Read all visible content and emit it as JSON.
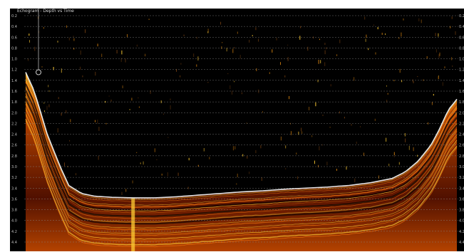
{
  "window": {
    "title": "Echogram - Depth vs Time"
  },
  "colors": {
    "background": "#000000",
    "grid": "#8a8a8a",
    "bottom_line": "#e6e6e6",
    "scale_low": "#5a1200",
    "scale_mid": "#c84a00",
    "scale_high": "#ffcc33",
    "cursor": "#cccccc"
  },
  "icons": {
    "cursor_marker": "circle-cursor-icon"
  },
  "chart_data": {
    "type": "heatmap",
    "title": "Echogram - Depth vs Time",
    "xlabel": "",
    "ylabel": "",
    "y_axis_inverted": true,
    "ylim": [
      0.2,
      4.4
    ],
    "yticks": [
      "0.2",
      "0.4",
      "0.6",
      "0.8",
      "1.0",
      "1.2",
      "1.4",
      "1.6",
      "1.8",
      "2.0",
      "2.2",
      "2.4",
      "2.6",
      "2.8",
      "3.0",
      "3.2",
      "3.4",
      "3.6",
      "3.8",
      "4.0",
      "4.2",
      "4.4"
    ],
    "grid": true,
    "grid_style": "dashed horizontal",
    "bottom_profile": {
      "x_fraction": [
        0.0,
        0.02,
        0.05,
        0.08,
        0.1,
        0.13,
        0.16,
        0.2,
        0.25,
        0.3,
        0.35,
        0.4,
        0.45,
        0.5,
        0.55,
        0.6,
        0.65,
        0.7,
        0.75,
        0.8,
        0.85,
        0.88,
        0.91,
        0.94,
        0.96,
        0.98,
        1.0
      ],
      "depth": [
        1.25,
        1.6,
        2.4,
        3.0,
        3.35,
        3.5,
        3.55,
        3.57,
        3.58,
        3.58,
        3.56,
        3.53,
        3.5,
        3.47,
        3.45,
        3.42,
        3.4,
        3.38,
        3.35,
        3.3,
        3.22,
        3.1,
        2.9,
        2.6,
        2.3,
        1.95,
        1.75
      ]
    },
    "cursor_depth": 1.25
  }
}
